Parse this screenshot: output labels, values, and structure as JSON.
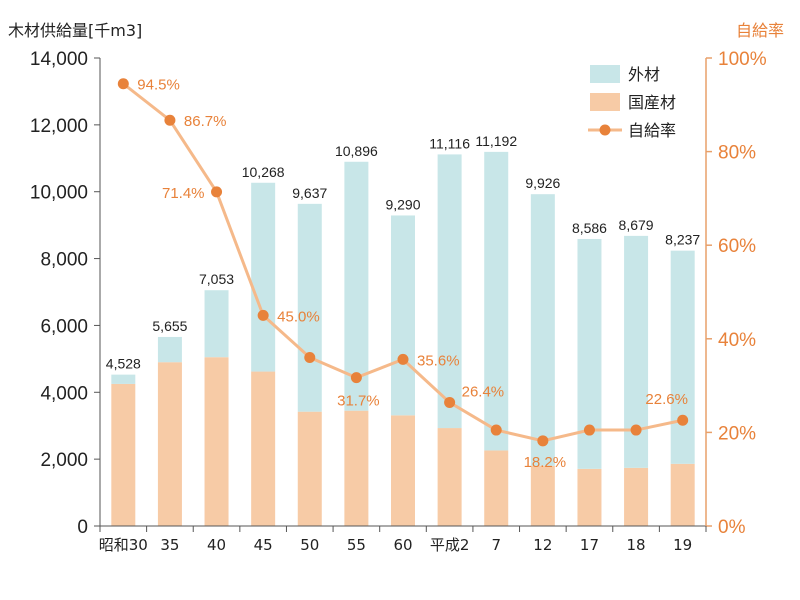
{
  "chart_data": {
    "type": "bar",
    "stacked": true,
    "categories": [
      "昭和30",
      "35",
      "40",
      "45",
      "50",
      "55",
      "60",
      "平成2",
      "7",
      "12",
      "17",
      "18",
      "19"
    ],
    "series": [
      {
        "name": "国産材",
        "values": [
          4250,
          4900,
          5050,
          4620,
          3420,
          3450,
          3310,
          2930,
          2260,
          1800,
          1710,
          1740,
          1860
        ],
        "color": "#f7cba6"
      },
      {
        "name": "外材",
        "values": [
          278,
          755,
          2003,
          5648,
          6217,
          7446,
          5980,
          8186,
          8932,
          8126,
          6876,
          6939,
          6377
        ],
        "color": "#c8e6e8"
      }
    ],
    "totals": [
      4528,
      5655,
      7053,
      10268,
      9637,
      10896,
      9290,
      11116,
      11192,
      9926,
      8586,
      8679,
      8237
    ],
    "total_labels": [
      "4,528",
      "5,655",
      "7,053",
      "10,268",
      "9,637",
      "10,896",
      "9,290",
      "11,116",
      "11,192",
      "9,926",
      "8,586",
      "8,679",
      "8,237"
    ],
    "line_series": {
      "name": "自給率",
      "values": [
        94.5,
        86.7,
        71.4,
        45.0,
        36.0,
        31.7,
        35.6,
        26.4,
        20.5,
        18.2,
        20.5,
        20.5,
        22.6
      ],
      "labels": [
        "94.5%",
        "86.7%",
        "71.4%",
        "45.0%",
        "",
        "31.7%",
        "35.6%",
        "26.4%",
        "",
        "18.2%",
        "",
        "",
        "22.6%"
      ],
      "color": "#e8823a",
      "line_color": "#f5b98a"
    },
    "ylabel": "木材供給量[千m3]",
    "y2label": "自給率",
    "ylim": [
      0,
      14000
    ],
    "y2lim": [
      0,
      100
    ],
    "yticks": [
      0,
      2000,
      4000,
      6000,
      8000,
      10000,
      12000,
      14000
    ],
    "ytick_labels": [
      "0",
      "2,000",
      "4,000",
      "6,000",
      "8,000",
      "10,000",
      "12,000",
      "14,000"
    ],
    "y2ticks": [
      0,
      20,
      40,
      60,
      80,
      100
    ],
    "y2tick_labels": [
      "0%",
      "20%",
      "40%",
      "60%",
      "80%",
      "100%"
    ],
    "legend": {
      "position": "top-right",
      "items": [
        "外材",
        "国産材",
        "自給率"
      ]
    },
    "grid": false
  }
}
